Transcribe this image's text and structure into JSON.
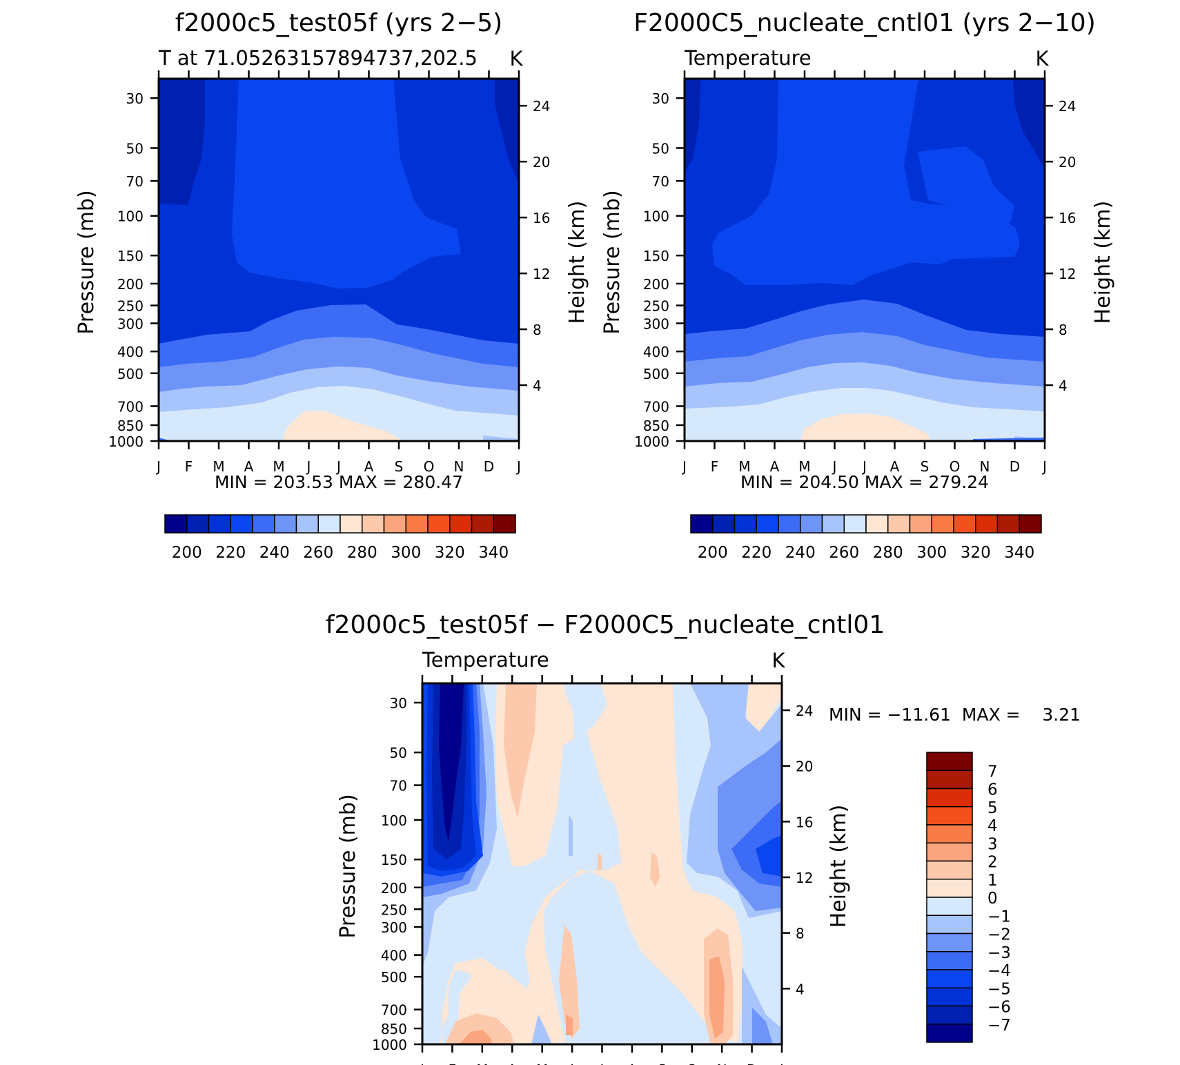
{
  "figure": {
    "months": [
      "J",
      "F",
      "M",
      "A",
      "M",
      "J",
      "J",
      "A",
      "S",
      "O",
      "N",
      "D",
      "J"
    ],
    "pressure_label": "Pressure (mb)",
    "height_label": "Height (km)"
  },
  "chart_data": [
    {
      "type": "heatmap",
      "id": "test",
      "title": "f2000c5_test05f (yrs 2−5)",
      "subtitle_left": "T at 71.05263157894737,202.5",
      "subtitle_right": "K",
      "min_max": "MIN = 203.53 MAX = 280.47",
      "min": 203.53,
      "max": 280.47,
      "pressure_levels": [
        1000,
        850,
        700,
        500,
        400,
        300,
        250,
        200,
        150,
        100,
        70,
        50,
        30
      ],
      "height_ticks_km": [
        4,
        8,
        12,
        16,
        20,
        24
      ],
      "contour_levels": [
        195,
        200,
        210,
        220,
        230,
        240,
        250,
        260,
        270,
        280,
        290,
        300,
        310,
        320,
        330,
        340
      ],
      "colorbar_labels": [
        "200",
        "220",
        "240",
        "260",
        "280",
        "300",
        "320",
        "340"
      ],
      "sample_field": {
        "months": [
          0,
          2,
          4,
          6,
          8,
          10,
          12
        ],
        "pressures": [
          1000,
          700,
          500,
          300,
          200,
          100,
          30
        ],
        "T": [
          [
            258,
            266,
            275,
            279,
            276,
            265,
            258
          ],
          [
            252,
            258,
            262,
            266,
            263,
            257,
            252
          ],
          [
            244,
            248,
            252,
            255,
            252,
            248,
            244
          ],
          [
            227,
            229,
            232,
            235,
            233,
            229,
            227
          ],
          [
            221,
            222,
            224,
            226,
            224,
            222,
            221
          ],
          [
            215,
            218,
            222,
            222,
            220,
            216,
            213
          ],
          [
            204,
            210,
            217,
            217,
            214,
            210,
            206
          ]
        ]
      }
    },
    {
      "type": "heatmap",
      "id": "control",
      "title": "F2000C5_nucleate_cntl01 (yrs 2−10)",
      "subtitle_left": "Temperature",
      "subtitle_right": "K",
      "min_max": "MIN = 204.50 MAX = 279.24",
      "min": 204.5,
      "max": 279.24,
      "pressure_levels": [
        1000,
        850,
        700,
        500,
        400,
        300,
        250,
        200,
        150,
        100,
        70,
        50,
        30
      ],
      "height_ticks_km": [
        4,
        8,
        12,
        16,
        20,
        24
      ],
      "contour_levels": [
        195,
        200,
        210,
        220,
        230,
        240,
        250,
        260,
        270,
        280,
        290,
        300,
        310,
        320,
        330,
        340
      ],
      "colorbar_labels": [
        "200",
        "220",
        "240",
        "260",
        "280",
        "300",
        "320",
        "340"
      ]
    },
    {
      "type": "heatmap",
      "id": "difference",
      "title": "f2000c5_test05f − F2000C5_nucleate_cntl01",
      "subtitle_left": "Temperature",
      "subtitle_right": "K",
      "min_max": "MIN = −11.61  MAX =    3.21",
      "min": -11.61,
      "max": 3.21,
      "pressure_levels": [
        1000,
        850,
        700,
        500,
        400,
        300,
        250,
        200,
        150,
        100,
        70,
        50,
        30
      ],
      "height_ticks_km": [
        4,
        8,
        12,
        16,
        20,
        24
      ],
      "contour_levels": [
        -7,
        -6,
        -5,
        -4,
        -3,
        -2,
        -1,
        0,
        1,
        2,
        3,
        4,
        5,
        6,
        7
      ],
      "colorbar_labels": [
        "7",
        "6",
        "5",
        "4",
        "3",
        "2",
        "1",
        "0",
        "−1",
        "−2",
        "−3",
        "−4",
        "−5",
        "−6",
        "−7"
      ],
      "features": "strong cooling near Feb above 200 mb (below −7 K); weak warming 0–1 K across Mar–Jul mid levels and near Oct–Nov; 2–3 K warming near surface in Feb–Mar and Nov"
    }
  ],
  "colors": {
    "abs_scale": [
      "#00008a",
      "#0020b0",
      "#0032d6",
      "#0a46f0",
      "#3c6cf6",
      "#6e94f8",
      "#a8c4fc",
      "#d6e8fc",
      "#fde6d4",
      "#fcc9ad",
      "#fba57e",
      "#f97b46",
      "#f2511e",
      "#d92e08",
      "#aa1a04",
      "#780000"
    ],
    "diff_scale": [
      "#00008a",
      "#0020b0",
      "#0032d6",
      "#0a46f0",
      "#3c6cf6",
      "#6e94f8",
      "#a8c4fc",
      "#d6e8fc",
      "#fde6d4",
      "#fcc9ad",
      "#fba57e",
      "#f97b46",
      "#f2511e",
      "#d92e08",
      "#aa1a04",
      "#780000"
    ]
  }
}
